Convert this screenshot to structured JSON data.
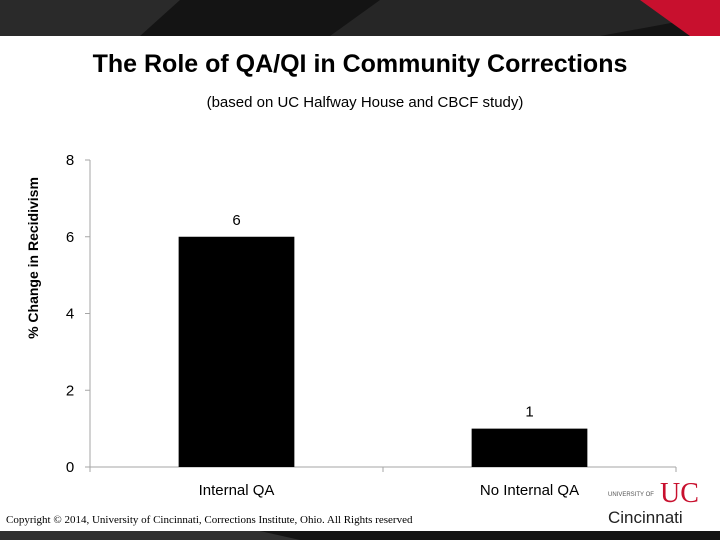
{
  "slide": {
    "title": "The Role of QA/QI in Community Corrections",
    "subtitle": "(based on UC Halfway House and CBCF study)",
    "copyright": "Copyright © 2014, University of Cincinnati, Corrections Institute, Ohio. All Rights reserved"
  },
  "logo": {
    "university_text": "UNIVERSITY OF",
    "name": "Cincinnati",
    "mark": "UC",
    "color": "#c8102e"
  },
  "colors": {
    "banner_dark": "#1a1a1a",
    "banner_red": "#c8102e",
    "bar": "#000000",
    "axis": "#a6a6a6"
  },
  "chart_data": {
    "type": "bar",
    "categories": [
      "Internal QA",
      "No Internal QA"
    ],
    "values": [
      6,
      1
    ],
    "data_labels": [
      "6",
      "1"
    ],
    "ylabel": "% Change in Recidivism",
    "ylim": [
      0,
      8
    ],
    "yticks": [
      0,
      2,
      4,
      6,
      8
    ],
    "grid": false,
    "legend": "none"
  }
}
